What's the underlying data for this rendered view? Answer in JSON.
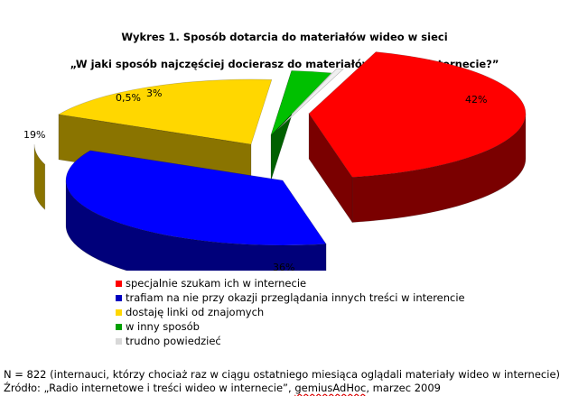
{
  "chart_data": {
    "type": "pie",
    "title": "Wykres 1. Sposób dotarcia do materiałów wideo w sieci",
    "subtitle": "„W jaki sposób najczęściej docierasz do materiałów wideo w internecie?”",
    "slices": [
      {
        "label": "specjalnie szukam ich w internecie",
        "value": 42,
        "value_label": "42%",
        "color": "#ff0000",
        "side_color": "#7a0000"
      },
      {
        "label": "trafiam na nie przy okazji przeglądania innych treści w interencie",
        "value": 36,
        "value_label": "36%",
        "color": "#0000ff",
        "side_color": "#00007a"
      },
      {
        "label": "dostaję linki od znajomych",
        "value": 19,
        "value_label": "19%",
        "color": "#ffd700",
        "side_color": "#8a7400"
      },
      {
        "label": "w inny sposób",
        "value": 3,
        "value_label": "3%",
        "color": "#00c000",
        "side_color": "#006000"
      },
      {
        "label": "trudno powiedzieć",
        "value": 0.5,
        "value_label": "0,5%",
        "color": "#f0f0f0",
        "side_color": "#a0a0a0"
      }
    ],
    "legend_position": "bottom-left"
  },
  "footnote": {
    "line1": "N = 822 (internauci, którzy chociaż raz w ciągu ostatniego miesiąca oglądali materiały wideo w internecie)",
    "line2_prefix": "Źródło: „Radio internetowe i treści wideo w internecie”, ",
    "line2_source": "gemiusAdHoc",
    "line2_suffix": ", marzec 2009"
  }
}
